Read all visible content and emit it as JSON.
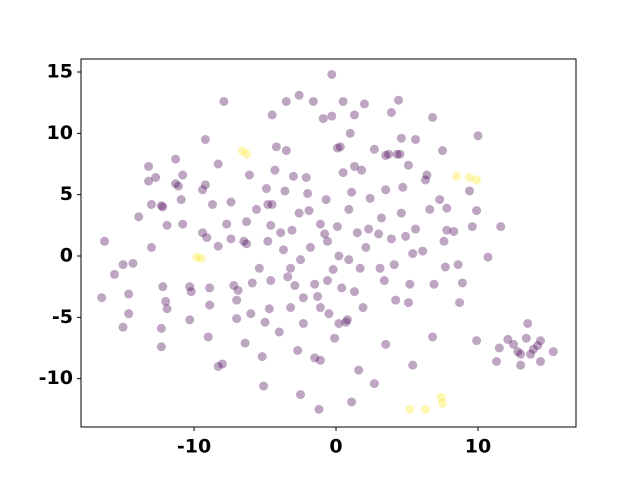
{
  "chart_data": {
    "type": "scatter",
    "xlim": [
      -17.96,
      16.9
    ],
    "ylim": [
      -13.94,
      16.06
    ],
    "xticks": [
      -10,
      0,
      10
    ],
    "yticks": [
      -10,
      -5,
      0,
      5,
      10,
      15
    ],
    "alpha": 0.35,
    "series": [
      {
        "color": "#440154",
        "x": [
          -16.3,
          -16.5,
          -15.6,
          -15.0,
          -15.0,
          -14.6,
          -14.6,
          -14.3,
          -13.9,
          -13.2,
          -13.2,
          -13.0,
          -13.0,
          -12.7,
          -12.3,
          -12.2,
          -12.2,
          -12.0,
          -12.3,
          -12.3,
          -11.9,
          -11.9,
          -11.3,
          -11.3,
          -11.1,
          -10.8,
          -10.9,
          -10.8,
          -10.3,
          -10.2,
          -10.3,
          -9.4,
          -9.2,
          -9.2,
          -9.4,
          -9.1,
          -8.9,
          -8.9,
          -9.0,
          -8.7,
          -8.3,
          -8.3,
          -8.0,
          -7.9,
          -7.7,
          -7.4,
          -7.4,
          -7.2,
          -7.0,
          -7.0,
          -6.9,
          -6.5,
          -6.4,
          -6.3,
          -6.3,
          -6.1,
          -6.0,
          -5.9,
          -5.6,
          -5.4,
          -5.2,
          -5.1,
          -5.0,
          -4.9,
          -4.8,
          -4.8,
          -4.7,
          -4.6,
          -4.5,
          -4.6,
          -4.3,
          -4.2,
          -4.0,
          -3.9,
          -3.7,
          -3.6,
          -3.5,
          -3.5,
          -3.4,
          -3.2,
          -3.2,
          -3.1,
          -3.0,
          -2.9,
          -2.7,
          -2.6,
          -2.6,
          -2.5,
          -2.5,
          -2.3,
          -2.3,
          -2.1,
          -2.0,
          -1.9,
          -1.8,
          -1.6,
          -1.5,
          -1.5,
          -1.3,
          -1.2,
          -1.1,
          -1.1,
          -1.1,
          -0.9,
          -0.8,
          -0.7,
          -0.6,
          -0.6,
          -0.5,
          -0.3,
          -0.2,
          -0.1,
          0.1,
          0.1,
          0.2,
          0.3,
          0.4,
          0.5,
          0.5,
          0.7,
          0.8,
          0.9,
          0.9,
          1.0,
          1.1,
          1.1,
          1.3,
          1.3,
          1.5,
          1.6,
          1.7,
          1.8,
          1.9,
          2.0,
          2.1,
          2.3,
          2.4,
          2.7,
          2.7,
          3.0,
          3.1,
          3.2,
          3.4,
          3.5,
          3.5,
          3.7,
          3.9,
          3.9,
          4.1,
          4.2,
          4.3,
          4.4,
          4.6,
          4.6,
          4.7,
          4.9,
          5.1,
          5.1,
          5.2,
          5.4,
          5.4,
          5.6,
          5.6,
          6.1,
          6.3,
          6.4,
          6.6,
          6.8,
          6.8,
          6.9,
          7.3,
          7.5,
          7.6,
          7.7,
          7.8,
          7.8,
          8.3,
          8.6,
          8.7,
          8.9,
          9.4,
          9.6,
          9.9,
          10.0,
          9.9,
          10.7,
          11.6,
          11.3,
          11.5,
          12.1,
          12.5,
          12.8,
          13.0,
          13.0,
          13.4,
          13.5,
          13.7,
          13.9,
          14.2,
          14.4,
          14.4,
          15.3,
          3.5,
          4.5,
          1.3,
          -0.3,
          0.2,
          -8.3,
          -4.5
        ],
        "values": [
          1.2,
          -3.4,
          -1.5,
          -0.7,
          -5.8,
          -4.7,
          -3.1,
          -0.6,
          3.2,
          7.3,
          6.1,
          0.7,
          4.2,
          6.4,
          4.1,
          4.0,
          -2.5,
          -3.7,
          -5.9,
          -7.4,
          -4.3,
          2.5,
          7.9,
          5.9,
          5.7,
          2.6,
          4.6,
          6.6,
          -2.5,
          -2.9,
          -5.2,
          5.4,
          5.8,
          9.5,
          1.9,
          1.5,
          -2.6,
          -4.0,
          -6.6,
          4.2,
          7.5,
          -9.0,
          -8.8,
          12.6,
          2.6,
          4.4,
          1.4,
          -2.4,
          -5.1,
          -3.6,
          -2.8,
          1.2,
          -7.1,
          2.8,
          1.0,
          6.6,
          -4.7,
          -2.2,
          3.8,
          -1.0,
          -8.2,
          -10.6,
          -5.4,
          5.5,
          4.2,
          1.2,
          -4.3,
          2.5,
          11.5,
          -2.0,
          7.0,
          8.9,
          -6.2,
          1.9,
          0.5,
          5.3,
          8.6,
          12.6,
          -1.7,
          -1.0,
          -4.2,
          2.1,
          6.5,
          -2.4,
          -7.7,
          13.1,
          3.5,
          -11.3,
          -0.3,
          -5.5,
          -3.4,
          6.4,
          5.1,
          3.7,
          0.7,
          12.6,
          -2.3,
          -8.3,
          -3.3,
          -12.5,
          2.6,
          -8.5,
          -4.2,
          11.2,
          1.8,
          4.6,
          1.2,
          -2.0,
          -4.7,
          14.8,
          -1.1,
          -6.7,
          8.8,
          2.4,
          0.0,
          8.9,
          -2.6,
          12.6,
          6.8,
          -5.4,
          -5.2,
          -0.3,
          3.8,
          10.0,
          5.2,
          -11.9,
          -2.9,
          11.5,
          1.9,
          -9.3,
          -1.0,
          7.0,
          -4.2,
          12.4,
          0.7,
          2.2,
          4.7,
          8.7,
          -10.4,
          1.8,
          -1.0,
          3.1,
          -2.0,
          -7.2,
          5.4,
          8.3,
          11.7,
          1.4,
          -0.7,
          -3.6,
          8.3,
          12.7,
          9.6,
          3.5,
          5.6,
          1.6,
          -3.8,
          7.4,
          -2.3,
          0.2,
          -8.9,
          9.5,
          2.2,
          0.4,
          6.2,
          6.6,
          3.8,
          -6.6,
          11.3,
          -2.3,
          4.6,
          8.6,
          1.2,
          -0.9,
          2.1,
          3.9,
          2.0,
          -0.7,
          -3.8,
          -2.2,
          5.3,
          2.4,
          3.7,
          9.8,
          -6.9,
          -0.1,
          2.4,
          -8.6,
          -7.5,
          -6.8,
          -7.2,
          -7.8,
          -8.9,
          -8.0,
          -6.7,
          -5.5,
          -8.0,
          -7.6,
          -7.3,
          -6.9,
          -8.6,
          -7.8,
          8.2,
          8.3,
          7.3,
          11.4,
          -5.5,
          0.8,
          4.2
        ]
      },
      {
        "color": "#fde725",
        "x": [
          -9.8,
          -9.5,
          -6.6,
          -6.3,
          8.5,
          9.4,
          9.9,
          7.4,
          7.5,
          5.2,
          6.3
        ],
        "values": [
          -0.1,
          -0.2,
          8.6,
          8.3,
          6.5,
          6.4,
          6.2,
          -11.5,
          -12.0,
          -12.5,
          -12.5
        ]
      }
    ]
  }
}
